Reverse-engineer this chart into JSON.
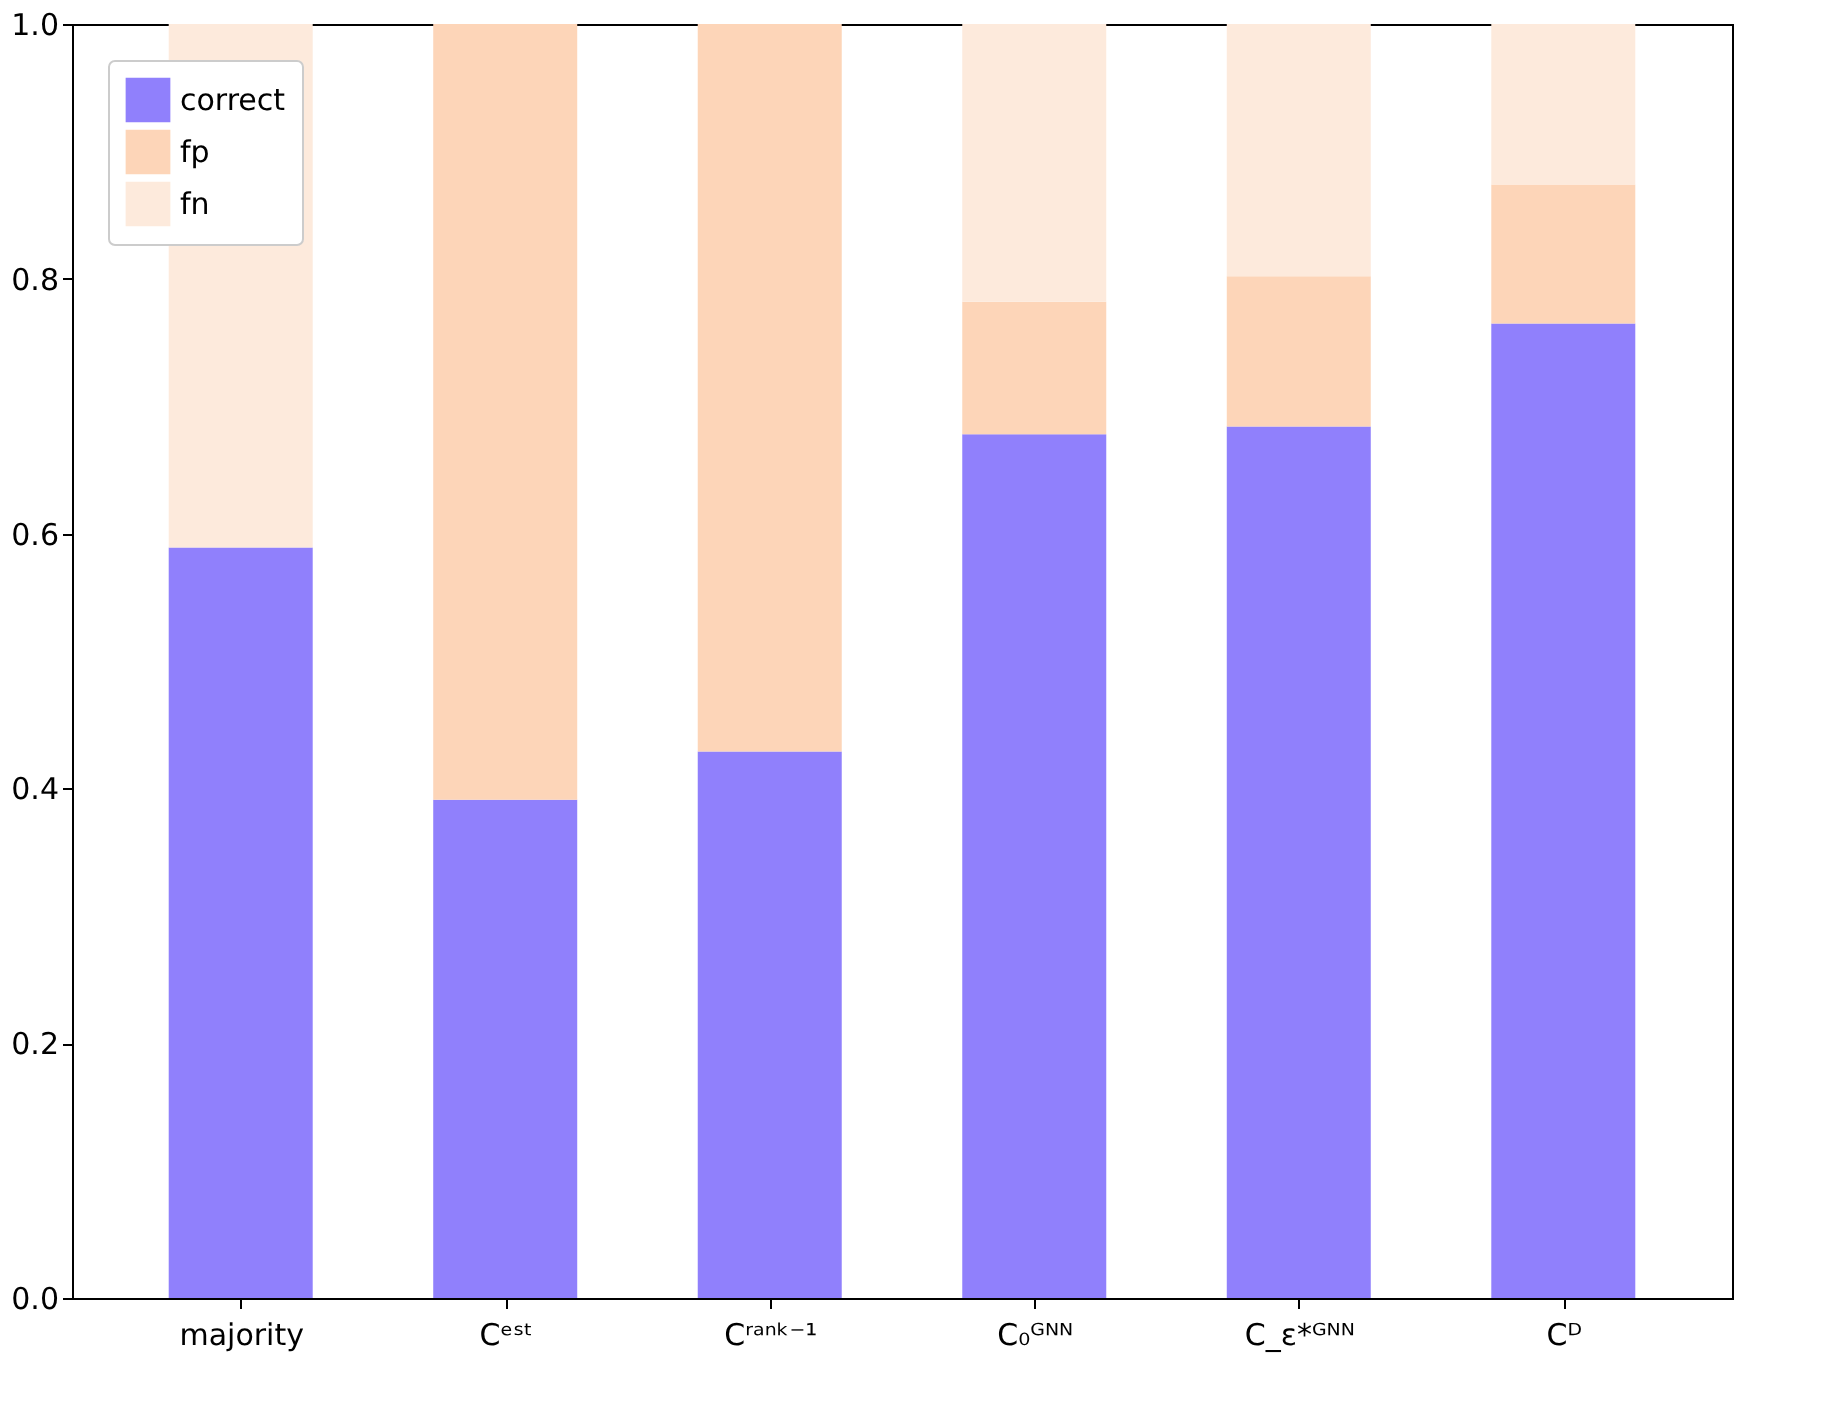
{
  "chart_data": {
    "type": "bar",
    "stacked": true,
    "categories": [
      "majority",
      "Cᵉˢᵗ",
      "Cʳᵃⁿᵏ⁻¹",
      "C₀ᴳᴺᴺ",
      "C_ε*ᴳᴺᴺ",
      "Cᴰ"
    ],
    "series": [
      {
        "name": "correct",
        "color": "#9080fc",
        "values": [
          0.589,
          0.391,
          0.429,
          0.678,
          0.684,
          0.765
        ]
      },
      {
        "name": "fp",
        "color": "#fdd5b8",
        "values": [
          0,
          0.609,
          0.571,
          0.104,
          0.118,
          0.109
        ]
      },
      {
        "name": "fn",
        "color": "#fdeadc",
        "values": [
          0.411,
          0,
          0,
          0.218,
          0.198,
          0.126
        ]
      }
    ],
    "ylim": [
      0,
      1
    ],
    "yticks": [
      {
        "value": 0,
        "label": "0.0"
      },
      0.2,
      0.4,
      0.6,
      0.8,
      {
        "value": 1,
        "label": "1.0"
      }
    ],
    "grid": false,
    "legend": "top left"
  }
}
